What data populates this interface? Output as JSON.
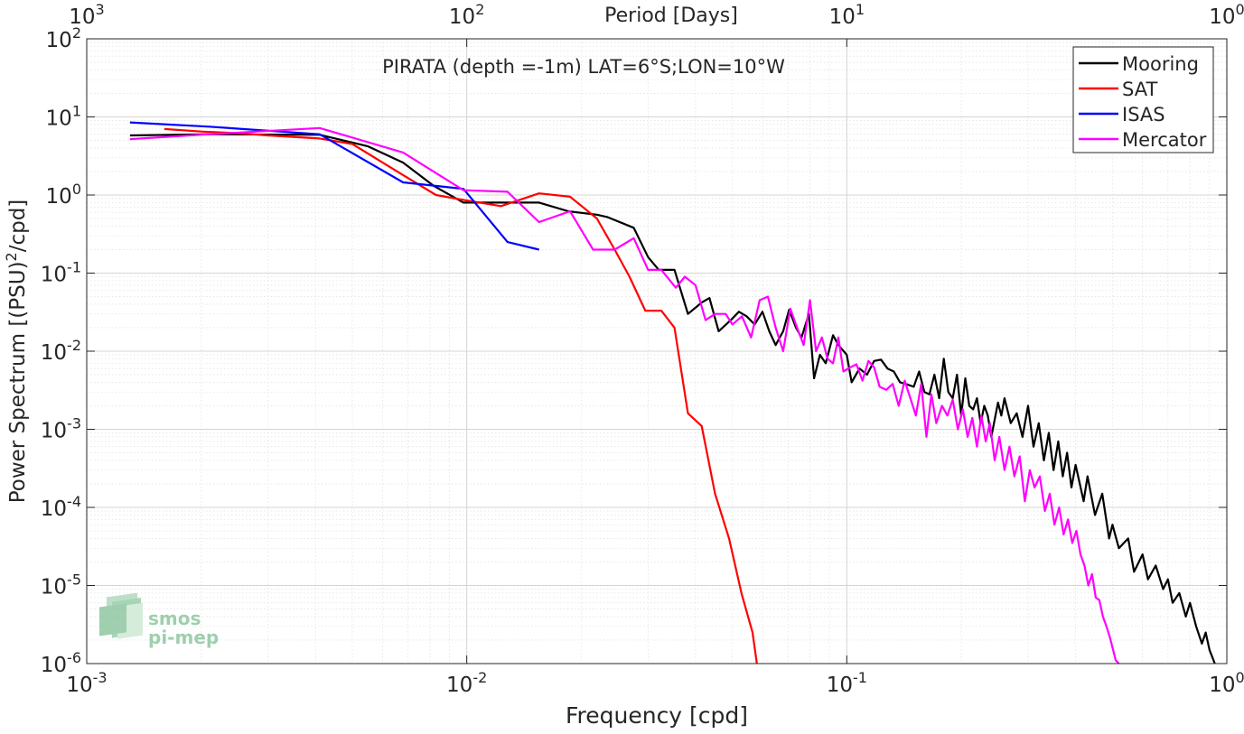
{
  "chart_data": {
    "type": "line",
    "title": "PIRATA (depth =-1m) LAT=6°S;LON=10°W",
    "xlabel": "Frequency [cpd]",
    "ylabel_main": "Power Spectrum [(PSU)",
    "ylabel_sup": "2",
    "ylabel_tail": "/cpd]",
    "top_xlabel": "Period [Days]",
    "x_scale": "log",
    "y_scale": "log",
    "xlim": [
      0.001,
      1
    ],
    "ylim": [
      1e-06,
      100
    ],
    "grid": true,
    "legend_position": "top-right",
    "x_ticks": [
      {
        "value": 0.001,
        "base": "10",
        "exp": "-3"
      },
      {
        "value": 0.01,
        "base": "10",
        "exp": "-2"
      },
      {
        "value": 0.1,
        "base": "10",
        "exp": "-1"
      },
      {
        "value": 1,
        "base": "10",
        "exp": "0"
      }
    ],
    "y_ticks": [
      {
        "value": 1e-06,
        "base": "10",
        "exp": "-6"
      },
      {
        "value": 1e-05,
        "base": "10",
        "exp": "-5"
      },
      {
        "value": 0.0001,
        "base": "10",
        "exp": "-4"
      },
      {
        "value": 0.001,
        "base": "10",
        "exp": "-3"
      },
      {
        "value": 0.01,
        "base": "10",
        "exp": "-2"
      },
      {
        "value": 0.1,
        "base": "10",
        "exp": "-1"
      },
      {
        "value": 1,
        "base": "10",
        "exp": "0"
      },
      {
        "value": 10,
        "base": "10",
        "exp": "1"
      },
      {
        "value": 100,
        "base": "10",
        "exp": "2"
      }
    ],
    "top_ticks": [
      {
        "freq": 0.001,
        "base": "10",
        "exp": "3"
      },
      {
        "freq": 0.01,
        "base": "10",
        "exp": "2"
      },
      {
        "freq": 0.1,
        "base": "10",
        "exp": "1"
      },
      {
        "freq": 1,
        "base": "10",
        "exp": "0"
      }
    ],
    "series": [
      {
        "name": "Mooring",
        "color": "#000000",
        "points": [
          [
            0.0013,
            5.8
          ],
          [
            0.0021,
            6.0
          ],
          [
            0.0041,
            5.9
          ],
          [
            0.0055,
            4.2
          ],
          [
            0.0068,
            2.6
          ],
          [
            0.0082,
            1.3
          ],
          [
            0.0098,
            0.8
          ],
          [
            0.012,
            0.8
          ],
          [
            0.0155,
            0.8
          ],
          [
            0.0185,
            0.62
          ],
          [
            0.022,
            0.56
          ],
          [
            0.0235,
            0.52
          ],
          [
            0.0275,
            0.38
          ],
          [
            0.03,
            0.16
          ],
          [
            0.032,
            0.11
          ],
          [
            0.0352,
            0.11
          ],
          [
            0.0382,
            0.03
          ],
          [
            0.0415,
            0.042
          ],
          [
            0.0435,
            0.048
          ],
          [
            0.046,
            0.018
          ],
          [
            0.0495,
            0.025
          ],
          [
            0.052,
            0.032
          ],
          [
            0.0545,
            0.028
          ],
          [
            0.0572,
            0.022
          ],
          [
            0.06,
            0.032
          ],
          [
            0.0625,
            0.018
          ],
          [
            0.065,
            0.012
          ],
          [
            0.068,
            0.018
          ],
          [
            0.0705,
            0.034
          ],
          [
            0.0735,
            0.02
          ],
          [
            0.076,
            0.015
          ],
          [
            0.0795,
            0.03
          ],
          [
            0.082,
            0.0045
          ],
          [
            0.085,
            0.009
          ],
          [
            0.088,
            0.007
          ],
          [
            0.092,
            0.016
          ],
          [
            0.095,
            0.012
          ],
          [
            0.1,
            0.009
          ],
          [
            0.103,
            0.004
          ],
          [
            0.108,
            0.006
          ],
          [
            0.113,
            0.005
          ],
          [
            0.118,
            0.0075
          ],
          [
            0.123,
            0.0078
          ],
          [
            0.128,
            0.006
          ],
          [
            0.133,
            0.0055
          ],
          [
            0.138,
            0.004
          ],
          [
            0.143,
            0.0038
          ],
          [
            0.15,
            0.0035
          ],
          [
            0.155,
            0.0055
          ],
          [
            0.16,
            0.003
          ],
          [
            0.165,
            0.0028
          ],
          [
            0.17,
            0.005
          ],
          [
            0.175,
            0.0025
          ],
          [
            0.18,
            0.008
          ],
          [
            0.185,
            0.003
          ],
          [
            0.19,
            0.0025
          ],
          [
            0.195,
            0.005
          ],
          [
            0.2,
            0.0015
          ],
          [
            0.205,
            0.0045
          ],
          [
            0.21,
            0.002
          ],
          [
            0.215,
            0.0018
          ],
          [
            0.22,
            0.0025
          ],
          [
            0.225,
            0.0012
          ],
          [
            0.23,
            0.002
          ],
          [
            0.235,
            0.0015
          ],
          [
            0.24,
            0.0008
          ],
          [
            0.25,
            0.0022
          ],
          [
            0.255,
            0.0015
          ],
          [
            0.26,
            0.0025
          ],
          [
            0.27,
            0.0012
          ],
          [
            0.28,
            0.0016
          ],
          [
            0.29,
            0.0008
          ],
          [
            0.3,
            0.002
          ],
          [
            0.31,
            0.0006
          ],
          [
            0.32,
            0.0012
          ],
          [
            0.33,
            0.0004
          ],
          [
            0.34,
            0.0009
          ],
          [
            0.35,
            0.0003
          ],
          [
            0.36,
            0.0007
          ],
          [
            0.37,
            0.00025
          ],
          [
            0.38,
            0.0005
          ],
          [
            0.39,
            0.00018
          ],
          [
            0.4,
            0.00035
          ],
          [
            0.42,
            0.00012
          ],
          [
            0.43,
            0.00025
          ],
          [
            0.45,
            8e-05
          ],
          [
            0.47,
            0.00015
          ],
          [
            0.49,
            4e-05
          ],
          [
            0.5,
            6e-05
          ],
          [
            0.52,
            3e-05
          ],
          [
            0.55,
            4e-05
          ],
          [
            0.57,
            1.5e-05
          ],
          [
            0.6,
            2.5e-05
          ],
          [
            0.62,
            1.2e-05
          ],
          [
            0.65,
            1.8e-05
          ],
          [
            0.68,
            9e-06
          ],
          [
            0.7,
            1.2e-05
          ],
          [
            0.72,
            6e-06
          ],
          [
            0.75,
            8e-06
          ],
          [
            0.78,
            4e-06
          ],
          [
            0.8,
            6e-06
          ],
          [
            0.83,
            3e-06
          ],
          [
            0.86,
            1.8e-06
          ],
          [
            0.88,
            2.5e-06
          ],
          [
            0.9,
            1.5e-06
          ],
          [
            0.93,
            1e-06
          ]
        ]
      },
      {
        "name": "SAT",
        "color": "#ff0000",
        "points": [
          [
            0.0016,
            7.0
          ],
          [
            0.002,
            6.5
          ],
          [
            0.0025,
            6.2
          ],
          [
            0.003,
            5.8
          ],
          [
            0.0041,
            5.3
          ],
          [
            0.005,
            4.5
          ],
          [
            0.0068,
            1.8
          ],
          [
            0.0083,
            1.0
          ],
          [
            0.01,
            0.85
          ],
          [
            0.0123,
            0.72
          ],
          [
            0.0155,
            1.05
          ],
          [
            0.0187,
            0.95
          ],
          [
            0.022,
            0.5
          ],
          [
            0.0245,
            0.2
          ],
          [
            0.0268,
            0.09
          ],
          [
            0.0295,
            0.033
          ],
          [
            0.0325,
            0.033
          ],
          [
            0.0352,
            0.02
          ],
          [
            0.0382,
            0.0016
          ],
          [
            0.0415,
            0.0011
          ],
          [
            0.045,
            0.00015
          ],
          [
            0.049,
            4e-05
          ],
          [
            0.0528,
            8e-06
          ],
          [
            0.0565,
            2.5e-06
          ],
          [
            0.058,
            1e-06
          ]
        ]
      },
      {
        "name": "ISAS",
        "color": "#0000ff",
        "points": [
          [
            0.0013,
            8.5
          ],
          [
            0.0021,
            7.5
          ],
          [
            0.0041,
            6.0
          ],
          [
            0.0068,
            1.45
          ],
          [
            0.0098,
            1.2
          ],
          [
            0.0128,
            0.25
          ],
          [
            0.0155,
            0.2
          ]
        ]
      },
      {
        "name": "Mercator",
        "color": "#ff00ff",
        "points": [
          [
            0.0013,
            5.2
          ],
          [
            0.0021,
            6.0
          ],
          [
            0.0041,
            7.2
          ],
          [
            0.0068,
            3.5
          ],
          [
            0.0098,
            1.15
          ],
          [
            0.0128,
            1.1
          ],
          [
            0.0155,
            0.45
          ],
          [
            0.0187,
            0.62
          ],
          [
            0.0215,
            0.2
          ],
          [
            0.0245,
            0.2
          ],
          [
            0.0275,
            0.28
          ],
          [
            0.03,
            0.11
          ],
          [
            0.0325,
            0.11
          ],
          [
            0.0355,
            0.065
          ],
          [
            0.0375,
            0.09
          ],
          [
            0.04,
            0.07
          ],
          [
            0.0425,
            0.025
          ],
          [
            0.045,
            0.03
          ],
          [
            0.048,
            0.03
          ],
          [
            0.05,
            0.022
          ],
          [
            0.053,
            0.028
          ],
          [
            0.056,
            0.015
          ],
          [
            0.059,
            0.045
          ],
          [
            0.062,
            0.05
          ],
          [
            0.065,
            0.02
          ],
          [
            0.068,
            0.01
          ],
          [
            0.071,
            0.035
          ],
          [
            0.074,
            0.02
          ],
          [
            0.077,
            0.012
          ],
          [
            0.08,
            0.045
          ],
          [
            0.083,
            0.01
          ],
          [
            0.086,
            0.015
          ],
          [
            0.089,
            0.008
          ],
          [
            0.092,
            0.007
          ],
          [
            0.095,
            0.015
          ],
          [
            0.098,
            0.0055
          ],
          [
            0.102,
            0.0062
          ],
          [
            0.106,
            0.0068
          ],
          [
            0.11,
            0.0042
          ],
          [
            0.114,
            0.0075
          ],
          [
            0.118,
            0.0062
          ],
          [
            0.122,
            0.0035
          ],
          [
            0.127,
            0.0032
          ],
          [
            0.132,
            0.0038
          ],
          [
            0.137,
            0.002
          ],
          [
            0.142,
            0.0042
          ],
          [
            0.147,
            0.0025
          ],
          [
            0.152,
            0.0015
          ],
          [
            0.157,
            0.0038
          ],
          [
            0.162,
            0.0008
          ],
          [
            0.167,
            0.0028
          ],
          [
            0.172,
            0.0012
          ],
          [
            0.178,
            0.002
          ],
          [
            0.184,
            0.0015
          ],
          [
            0.19,
            0.0024
          ],
          [
            0.196,
            0.001
          ],
          [
            0.202,
            0.0018
          ],
          [
            0.208,
            0.0008
          ],
          [
            0.214,
            0.0014
          ],
          [
            0.22,
            0.0006
          ],
          [
            0.226,
            0.0015
          ],
          [
            0.232,
            0.0007
          ],
          [
            0.238,
            0.0012
          ],
          [
            0.245,
            0.0004
          ],
          [
            0.252,
            0.0008
          ],
          [
            0.26,
            0.0003
          ],
          [
            0.268,
            0.0006
          ],
          [
            0.276,
            0.00025
          ],
          [
            0.285,
            0.00045
          ],
          [
            0.294,
            0.00012
          ],
          [
            0.303,
            0.0003
          ],
          [
            0.312,
            0.00018
          ],
          [
            0.322,
            0.00025
          ],
          [
            0.332,
            9e-05
          ],
          [
            0.342,
            0.00015
          ],
          [
            0.352,
            6e-05
          ],
          [
            0.362,
            0.0001
          ],
          [
            0.372,
            4.5e-05
          ],
          [
            0.382,
            7e-05
          ],
          [
            0.392,
            3.5e-05
          ],
          [
            0.402,
            5e-05
          ],
          [
            0.412,
            2.5e-05
          ],
          [
            0.422,
            1.8e-05
          ],
          [
            0.432,
            1e-05
          ],
          [
            0.442,
            1.4e-05
          ],
          [
            0.452,
            7e-06
          ],
          [
            0.462,
            6.5e-06
          ],
          [
            0.472,
            4e-06
          ],
          [
            0.482,
            3e-06
          ],
          [
            0.492,
            2.2e-06
          ],
          [
            0.502,
            1.5e-06
          ],
          [
            0.51,
            1.1e-06
          ],
          [
            0.52,
            1e-06
          ]
        ]
      }
    ]
  },
  "logo": {
    "line1": "smos",
    "line2": "pi-mep"
  }
}
